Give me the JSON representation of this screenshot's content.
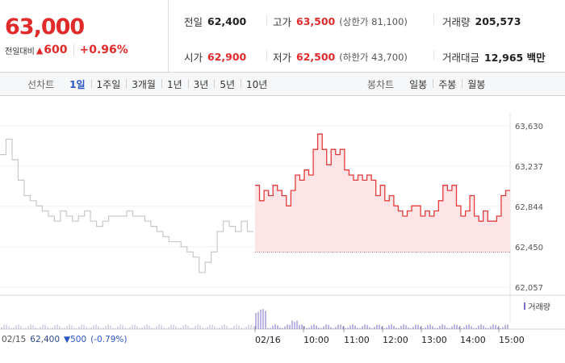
{
  "summary": {
    "price": "63,000",
    "change_label": "전일대비",
    "change_symbol": "▲",
    "change_amount": "600",
    "change_pct": "+0.96%"
  },
  "stats": {
    "prev_close": {
      "label": "전일",
      "value": "62,400"
    },
    "high": {
      "label": "고가",
      "value": "63,500",
      "sub": "(상한가 81,100)"
    },
    "volume": {
      "label": "거래량",
      "value": "205,573"
    },
    "open": {
      "label": "시가",
      "value": "62,900"
    },
    "low": {
      "label": "저가",
      "value": "62,500",
      "sub": "(하한가 43,700)"
    },
    "trade_value": {
      "label": "거래대금",
      "value": "12,965 백만"
    }
  },
  "toolbar": {
    "line_label": "선차트",
    "line_items": [
      "1일",
      "1주일",
      "3개월",
      "1년",
      "3년",
      "5년",
      "10년"
    ],
    "active_item": "1일",
    "candle_label": "봉차트",
    "candle_items": [
      "일봉",
      "주봉",
      "월봉"
    ]
  },
  "chart_data": {
    "type": "line",
    "y_ticks": [
      "63,630",
      "63,237",
      "62,844",
      "62,450",
      "62,057"
    ],
    "ylim": [
      62057,
      63630
    ],
    "x_ticks": [
      "02/16",
      "10:00",
      "11:00",
      "12:00",
      "13:00",
      "14:00",
      "15:00"
    ],
    "previous_day_date": "02/15",
    "previous_close": 62400,
    "previous_day_series": [
      63350,
      63500,
      63300,
      63100,
      62950,
      62900,
      62850,
      62800,
      62750,
      62700,
      62800,
      62750,
      62700,
      62750,
      62800,
      62700,
      62650,
      62700,
      62750,
      62750,
      62750,
      62800,
      62750,
      62750,
      62700,
      62650,
      62600,
      62550,
      62500,
      62500,
      62450,
      62400,
      62350,
      62200,
      62300,
      62400,
      62600,
      62700,
      62650,
      62600,
      62700,
      62600
    ],
    "today_series": [
      63050,
      62900,
      63000,
      62950,
      63050,
      63000,
      62950,
      62850,
      63000,
      63150,
      63100,
      63200,
      63150,
      63400,
      63550,
      63400,
      63250,
      63400,
      63350,
      63400,
      63200,
      63150,
      63100,
      63150,
      63100,
      63150,
      63100,
      62950,
      63050,
      62900,
      62950,
      62850,
      62800,
      62750,
      62800,
      62850,
      62850,
      62750,
      62800,
      62750,
      62800,
      62900,
      63050,
      63000,
      63050,
      62850,
      62750,
      62800,
      62950,
      62750,
      62700,
      62800,
      62700,
      62700,
      62750,
      62950,
      63000
    ],
    "volume_legend": "거래량"
  },
  "bottom_info": {
    "date": "02/15",
    "close": "62,400",
    "change": "▼500",
    "pct": "(-0.79%)"
  },
  "colors": {
    "up": "#e12b2b",
    "down": "#2b55c4",
    "today_line": "#e33b3b",
    "today_fill": "#fde4e6",
    "prev_line": "#c8c8c8",
    "volume": "#7a6fc4"
  }
}
